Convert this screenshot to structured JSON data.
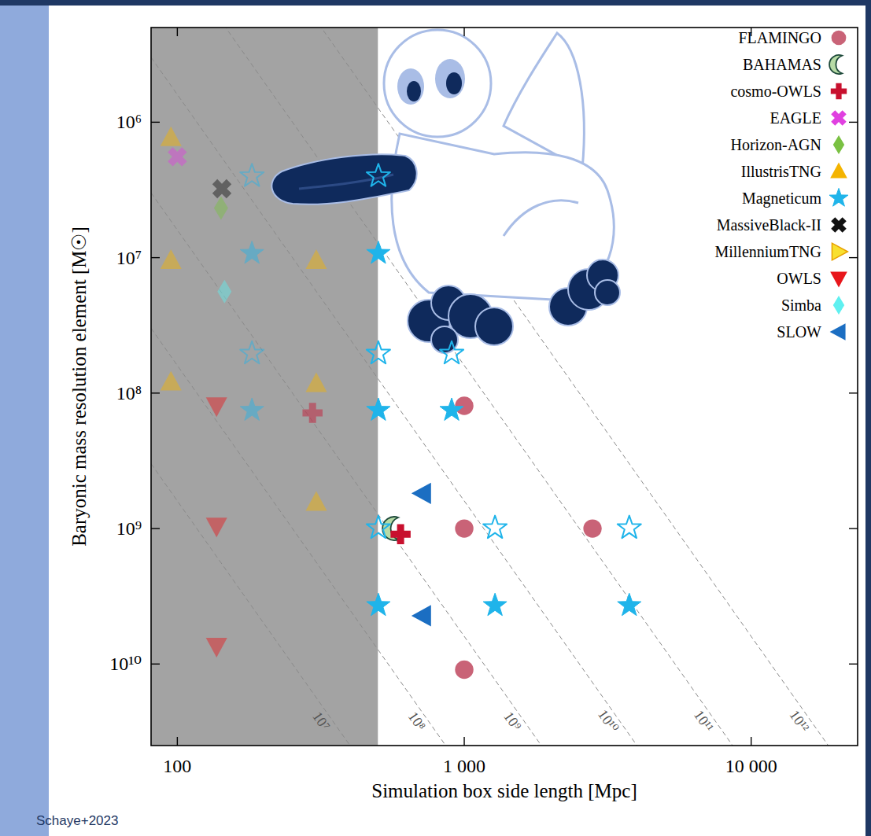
{
  "chart_data": {
    "type": "scatter",
    "x_label": "Simulation box side length [Mpc]",
    "y_label": "Baryonic mass resolution element [M☉]",
    "source": "Schaye+2023",
    "log": true,
    "grid": false,
    "legend": "top-right",
    "xlim": [
      81,
      23500
    ],
    "ylim": [
      40000000000,
      200000
    ],
    "xticks": [
      100,
      {
        "value": 1000,
        "label": "1 000"
      },
      {
        "value": 10000,
        "label": "10 000"
      }
    ],
    "yticks": [
      {
        "value": 1000000,
        "label": "10⁶"
      },
      {
        "value": 10000000,
        "label": "10⁷"
      },
      {
        "value": 100000000,
        "label": "10⁸"
      },
      {
        "value": 1000000000,
        "label": "10⁹"
      },
      {
        "value": 10000000000,
        "label": "10¹⁰"
      }
    ],
    "shaded_region": [
      81,
      500
    ],
    "reference_lines": {
      "baryon_density": 6250000000,
      "lines": [
        {
          "value": 10000000,
          "label": "10⁷"
        },
        {
          "value": 100000000,
          "label": "10⁸"
        },
        {
          "value": 1000000000,
          "label": "10⁹"
        },
        {
          "value": 10000000000,
          "label": "10¹⁰"
        },
        {
          "value": 100000000000,
          "label": "10¹¹"
        },
        {
          "value": 1000000000000,
          "label": "10¹²"
        }
      ]
    },
    "series": [
      {
        "name": "FLAMINGO",
        "color": "#c96377",
        "marker": "circle",
        "x": [
          1000,
          1000,
          1000,
          2800
        ],
        "values": [
          124000000,
          1000000000,
          11000000000,
          1000000000
        ]
      },
      {
        "name": "BAHAMAS",
        "color": "#b7dba6",
        "marker": "crescent",
        "x": [
          570
        ],
        "values": [
          1000000000
        ]
      },
      {
        "name": "cosmo-OWLS",
        "color": "#c8102e",
        "marker": "plus",
        "x": [
          296,
          600
        ],
        "values": [
          140000000,
          1100000000
        ]
      },
      {
        "name": "EAGLE",
        "color": "#e040e0",
        "marker": "x",
        "x": [
          100
        ],
        "values": [
          1800000
        ]
      },
      {
        "name": "Horizon-AGN",
        "color": "#7ac143",
        "marker": "diamond",
        "x": [
          142
        ],
        "values": [
          4300000
        ]
      },
      {
        "name": "IllustrisTNG",
        "color": "#f4b400",
        "marker": "triangle-up",
        "x": [
          95,
          95,
          95,
          305,
          305,
          305
        ],
        "values": [
          1300000,
          10500000,
          83000000,
          10500000,
          85000000,
          640000000
        ]
      },
      {
        "name": "Magneticum",
        "color": "#1fb4ea",
        "marker": "star",
        "x": [
          182,
          502,
          182,
          502,
          904,
          502,
          1280,
          3760
        ],
        "values": [
          9300000,
          9300000,
          134000000,
          134000000,
          134000000,
          3700000000,
          3700000000,
          3700000000
        ]
      },
      {
        "name": "Magneticum",
        "color": "#1fb4ea",
        "marker": "star-open",
        "x": [
          182,
          502,
          182,
          502,
          904,
          502,
          1280,
          3760
        ],
        "values": [
          2500000,
          2500000,
          51000000,
          51000000,
          51000000,
          990000000,
          990000000,
          990000000
        ]
      },
      {
        "name": "MassiveBlack-II",
        "color": "#111111",
        "marker": "x",
        "x": [
          143
        ],
        "values": [
          3100000
        ]
      },
      {
        "name": "MillenniumTNG",
        "color": "#f8e030",
        "marker": "triangle-right",
        "x": [],
        "values": []
      },
      {
        "name": "OWLS",
        "color": "#e8161b",
        "marker": "triangle-down",
        "x": [
          137,
          137,
          137
        ],
        "values": [
          124000000,
          960000000,
          7400000000
        ]
      },
      {
        "name": "Simba",
        "color": "#5ff0f0",
        "marker": "diamond",
        "x": [
          146
        ],
        "values": [
          17800000
        ]
      },
      {
        "name": "SLOW",
        "color": "#1b6ec2",
        "marker": "triangle-left",
        "x": [
          716,
          716
        ],
        "values": [
          550000000,
          4400000000
        ]
      }
    ]
  }
}
